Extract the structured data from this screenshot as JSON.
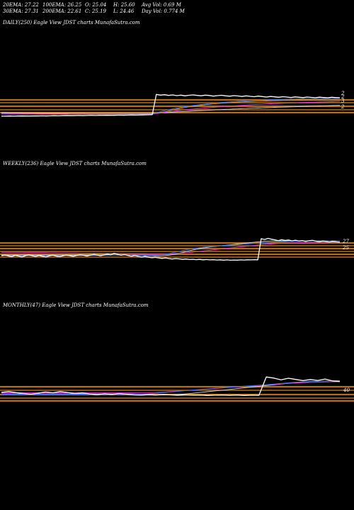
{
  "header": {
    "col1": [
      "20EMA: 27.22",
      "30EMA: 27.31"
    ],
    "col2": [
      "100EMA: 26.25",
      "200EMA: 22.61"
    ],
    "col3": [
      "O: 25.04",
      "C: 25.19"
    ],
    "col4": [
      "H: 25.60",
      "L: 24.46"
    ],
    "col5": [
      "Avg Vol: 0.69  M",
      "Day Vol: 0.774  M"
    ]
  },
  "colors": {
    "background": "#000000",
    "price": "#ffffff",
    "band": "#c87a1e",
    "ema_blue": "#3a6cf0",
    "ema_pink": "#e23acb",
    "ema_white": "#d8d8d8",
    "ema_orange": "#e79a3a"
  },
  "chart_data": [
    {
      "type": "line",
      "title": "DAILY(250) Eagle   View  JDST charts MunafaSutra.com",
      "right_labels": [
        "2",
        "2",
        "3",
        "2"
      ],
      "series": [
        {
          "values": [
            9.6,
            9.6,
            9.7,
            9.6,
            9.7,
            9.8,
            9.7,
            9.7,
            9.8,
            9.8,
            9.9,
            9.8,
            9.9,
            10.0,
            9.9,
            10.0,
            10.1,
            10.0,
            10.1,
            10.2,
            10.1,
            10.2,
            10.3,
            10.2,
            10.3,
            10.3,
            10.4,
            10.3,
            10.4,
            10.5,
            10.4,
            10.5,
            10.6,
            10.5,
            10.6,
            10.7,
            10.8,
            10.9,
            28.0,
            27.4,
            27.8,
            27.2,
            27.6,
            27.0,
            27.4,
            26.8,
            27.3,
            27.6,
            27.2,
            26.9,
            27.4,
            27.1,
            26.6,
            27.0,
            27.3,
            26.8,
            26.5,
            27.0,
            26.7,
            26.3,
            26.8,
            26.4,
            26.1,
            26.6,
            26.2,
            25.8,
            26.3,
            26.0,
            25.6,
            26.1,
            25.8,
            25.4,
            25.9,
            25.6,
            25.3,
            25.8,
            25.5,
            25.2,
            25.7,
            25.4,
            25.1,
            25.6,
            25.3,
            25.2
          ]
        },
        {
          "values": [
            11.4,
            11.4,
            11.3,
            11.3,
            11.3,
            11.2,
            11.2,
            11.2,
            11.2,
            11.1,
            11.1,
            11.1,
            11.1,
            11.1,
            11.1,
            11.1,
            11.1,
            11.1,
            11.1,
            11.1,
            11.1,
            11.1,
            11.1,
            11.1,
            11.1,
            11.1,
            11.1,
            11.1,
            11.1,
            11.1,
            11.1,
            11.1,
            11.1,
            11.1,
            11.2,
            11.2,
            11.2,
            11.3,
            12.5,
            13.4,
            14.3,
            15.1,
            15.8,
            16.5,
            17.1,
            17.7,
            18.2,
            18.7,
            19.1,
            19.5,
            19.9,
            20.3,
            20.6,
            20.9,
            21.2,
            21.5,
            21.7,
            22.0,
            22.2,
            22.4,
            22.6,
            22.8,
            23.0,
            23.1,
            23.3,
            23.4,
            23.6,
            23.7,
            23.8,
            23.9,
            24.0,
            24.1,
            24.2,
            24.3,
            24.4,
            24.4,
            24.5,
            24.5,
            24.6,
            24.6,
            24.7,
            24.7,
            24.7,
            24.8
          ]
        },
        {
          "values": [
            11.8,
            11.8,
            11.7,
            11.7,
            11.7,
            11.6,
            11.6,
            11.6,
            11.5,
            11.5,
            11.5,
            11.5,
            11.4,
            11.4,
            11.4,
            11.4,
            11.4,
            11.3,
            11.3,
            11.3,
            11.3,
            11.3,
            11.3,
            11.3,
            11.3,
            11.3,
            11.3,
            11.3,
            11.3,
            11.3,
            11.3,
            11.3,
            11.3,
            11.3,
            11.3,
            11.3,
            11.3,
            11.3,
            11.8,
            12.3,
            12.8,
            13.3,
            13.7,
            14.1,
            14.5,
            14.9,
            15.3,
            15.6,
            15.9,
            16.2,
            16.5,
            16.8,
            17.1,
            17.4,
            17.6,
            17.9,
            18.1,
            18.3,
            18.6,
            18.8,
            19.0,
            19.2,
            19.4,
            19.6,
            19.7,
            19.9,
            20.1,
            20.2,
            20.4,
            20.5,
            20.7,
            20.8,
            20.9,
            21.1,
            21.2,
            21.3,
            21.4,
            21.5,
            21.6,
            21.7,
            21.8,
            21.9,
            22.0,
            22.1
          ]
        },
        {
          "values": [
            12.6,
            12.6,
            12.5,
            12.5,
            12.5,
            12.5,
            12.4,
            12.4,
            12.4,
            12.4,
            12.3,
            12.3,
            12.3,
            12.3,
            12.3,
            12.2,
            12.2,
            12.2,
            12.2,
            12.2,
            12.2,
            12.1,
            12.1,
            12.1,
            12.1,
            12.1,
            12.1,
            12.1,
            12.1,
            12.1,
            12.0,
            12.0,
            12.0,
            12.0,
            12.0,
            12.0,
            12.0,
            12.0,
            12.2,
            12.4,
            12.6,
            12.8,
            13.0,
            13.2,
            13.4,
            13.6,
            13.8,
            14.0,
            14.2,
            14.4,
            14.5,
            14.7,
            14.9,
            15.1,
            15.2,
            15.4,
            15.5,
            15.7,
            15.8,
            16.0,
            16.1,
            16.3,
            16.4,
            16.5,
            16.7,
            16.8,
            16.9,
            17.1,
            17.2,
            17.3,
            17.4,
            17.5,
            17.6,
            17.8,
            17.9,
            18.0,
            18.1,
            18.2,
            18.3,
            18.4,
            18.5,
            18.6,
            18.7,
            18.8
          ]
        },
        {
          "values": [
            12.0,
            12.0,
            12.0,
            12.0,
            12.0,
            12.0,
            12.0,
            12.0,
            12.0,
            12.0,
            12.0,
            12.0,
            12.0,
            12.0,
            12.0,
            12.0,
            12.0,
            12.0,
            12.0,
            12.0,
            12.0,
            12.0,
            12.0,
            12.0,
            12.0,
            12.0,
            12.0,
            12.0,
            12.0,
            12.0,
            12.0,
            12.0,
            12.0,
            12.0,
            12.0,
            12.0,
            12.0,
            12.0,
            12.2,
            12.6,
            13.2,
            14.0,
            14.8,
            15.6,
            16.3,
            17.0,
            17.5,
            18.0,
            18.5,
            18.9,
            19.3,
            19.7,
            20.0,
            20.3,
            20.6,
            20.9,
            21.1,
            21.3,
            21.5,
            21.7,
            21.9,
            22.0,
            22.2,
            22.3,
            22.4,
            22.5,
            22.6,
            22.7,
            22.8,
            22.9,
            22.9,
            23.0,
            23.0,
            23.1,
            23.1,
            23.2,
            23.2,
            23.2,
            23.3,
            23.3,
            23.3,
            23.3,
            23.4,
            23.4
          ]
        }
      ]
    },
    {
      "type": "line",
      "title": "WEEKLY(236) Eagle   View  JDST charts MunafaSutra.com",
      "right_labels": [
        "27",
        "25"
      ],
      "series": [
        {
          "values": [
            14.2,
            14.8,
            14.1,
            13.6,
            14.5,
            14.0,
            13.4,
            14.3,
            14.9,
            14.2,
            13.7,
            14.4,
            13.9,
            13.3,
            14.1,
            14.7,
            14.0,
            13.5,
            14.2,
            14.8,
            14.3,
            13.8,
            14.5,
            15.1,
            14.6,
            14.0,
            14.7,
            15.3,
            14.8,
            14.2,
            14.9,
            15.5,
            15.0,
            16.2,
            15.4,
            14.6,
            15.2,
            14.5,
            13.9,
            14.4,
            13.8,
            13.2,
            13.7,
            13.1,
            12.6,
            13.0,
            12.5,
            12.1,
            12.5,
            12.0,
            11.6,
            12.0,
            11.7,
            11.3,
            11.6,
            11.2,
            11.4,
            11.1,
            11.3,
            11.0,
            11.2,
            10.9,
            11.1,
            10.8,
            11.0,
            10.7,
            10.9,
            10.6,
            10.8,
            10.7,
            10.9,
            10.8,
            11.0,
            10.9,
            11.1,
            11.0,
            28.0,
            27.4,
            28.3,
            27.6,
            27.1,
            26.4,
            27.2,
            26.6,
            27.0,
            26.2,
            26.8,
            26.1,
            26.5,
            25.8,
            26.4,
            26.7,
            26.0,
            25.6,
            26.1,
            25.8,
            25.4,
            25.9,
            25.5,
            25.2
          ]
        },
        {
          "values": [
            14.2,
            14.2,
            14.2,
            14.2,
            14.2,
            14.2,
            14.2,
            14.2,
            14.2,
            14.2,
            14.2,
            14.2,
            14.2,
            14.2,
            14.2,
            14.2,
            14.2,
            14.2,
            14.2,
            14.3,
            14.3,
            14.3,
            14.3,
            14.3,
            14.4,
            14.4,
            14.4,
            14.5,
            14.5,
            14.6,
            14.6,
            14.7,
            14.8,
            14.9,
            15.0,
            15.0,
            14.9,
            14.9,
            14.8,
            14.8,
            14.7,
            14.6,
            14.6,
            14.5,
            14.5,
            14.6,
            14.8,
            15.1,
            15.5,
            16.0,
            16.6,
            17.2,
            17.8,
            18.4,
            19.0,
            19.5,
            20.0,
            20.4,
            20.8,
            21.1,
            21.4,
            21.6,
            21.8,
            22.0,
            22.2,
            22.4,
            22.6,
            22.8,
            23.0,
            23.2,
            23.4,
            23.6,
            23.8,
            24.0,
            24.2,
            24.4,
            24.6,
            24.9,
            25.1,
            25.3,
            25.5,
            25.6,
            25.7,
            25.8,
            25.9,
            26.0,
            26.0,
            26.1,
            26.1,
            26.1,
            26.2,
            26.2,
            26.2,
            26.2,
            26.2,
            26.2,
            26.2,
            26.2,
            26.2,
            26.2
          ]
        },
        {
          "values": [
            17.0,
            17.0,
            17.0,
            17.0,
            17.0,
            17.0,
            17.0,
            16.9,
            16.9,
            16.9,
            16.9,
            16.8,
            16.8,
            16.8,
            16.7,
            16.7,
            16.7,
            16.6,
            16.6,
            16.6,
            16.5,
            16.5,
            16.5,
            16.4,
            16.4,
            16.4,
            16.3,
            16.3,
            16.3,
            16.2,
            16.2,
            16.2,
            16.2,
            16.1,
            16.1,
            16.1,
            16.1,
            16.1,
            16.0,
            16.0,
            16.0,
            16.0,
            16.0,
            15.9,
            15.9,
            15.9,
            15.9,
            15.9,
            15.9,
            15.9,
            16.0,
            16.1,
            16.3,
            16.5,
            16.7,
            16.9,
            17.2,
            17.5,
            17.8,
            18.1,
            18.4,
            18.7,
            19.0,
            19.3,
            19.6,
            19.9,
            20.2,
            20.5,
            20.8,
            21.1,
            21.4,
            21.7,
            22.0,
            22.3,
            22.6,
            22.9,
            23.2,
            23.4,
            23.6,
            23.8,
            24.0,
            24.2,
            24.3,
            24.4,
            24.5,
            24.6,
            24.7,
            24.8,
            24.9,
            25.0,
            25.0,
            25.1,
            25.1,
            25.2,
            25.2,
            25.2,
            25.3,
            25.3,
            25.3,
            25.3
          ]
        },
        {
          "values": [
            14.8,
            14.8,
            14.8,
            14.8,
            14.8,
            14.8,
            14.8,
            14.8,
            14.8,
            14.8,
            14.8,
            14.8,
            14.8,
            14.8,
            14.8,
            14.8,
            14.8,
            14.8,
            14.8,
            14.8,
            14.8,
            14.8,
            14.8,
            14.8,
            14.8,
            14.8,
            14.8,
            14.8,
            14.8,
            14.8,
            14.8,
            14.8,
            14.8,
            14.8,
            14.8,
            14.8,
            14.8,
            14.8,
            14.8,
            14.7,
            14.6,
            14.5,
            14.4,
            14.3,
            14.2,
            14.1,
            14.1,
            14.2,
            14.4,
            14.7,
            15.1,
            15.6,
            16.2,
            16.9,
            17.6,
            18.3,
            18.9,
            19.5,
            20.0,
            20.5,
            20.9,
            21.3,
            21.6,
            21.9,
            22.2,
            22.5,
            22.8,
            23.1,
            23.4,
            23.7,
            24.0,
            24.3,
            24.6,
            24.9,
            25.2,
            25.5,
            25.8,
            26.0,
            26.1,
            26.2,
            26.2,
            26.2,
            26.2,
            26.2,
            26.2,
            26.2,
            26.2,
            26.2,
            26.2,
            26.2,
            26.2,
            26.2,
            26.2,
            26.2,
            26.2,
            26.2,
            26.2,
            26.2,
            26.2,
            26.2
          ]
        }
      ]
    },
    {
      "type": "line",
      "title": "MONTHLY(47) Eagle   View  JDST charts MunafaSutra.com",
      "right_labels": [
        "40"
      ],
      "series": [
        {
          "values": [
            28.0,
            28.6,
            27.8,
            27.2,
            26.6,
            27.4,
            28.3,
            27.7,
            28.6,
            27.9,
            27.1,
            27.6,
            26.8,
            26.2,
            26.9,
            26.4,
            27.1,
            26.6,
            26.0,
            25.8,
            26.2,
            25.9,
            26.3,
            26.0,
            25.7,
            26.0,
            25.8,
            25.9,
            25.6,
            25.8,
            25.9,
            25.7,
            25.9,
            25.6,
            25.8,
            25.7,
            40.0,
            39.2,
            37.8,
            39.0,
            38.1,
            37.2,
            38.0,
            37.3,
            38.4,
            36.9,
            36.5
          ]
        },
        {
          "values": [
            26.6,
            26.6,
            26.6,
            26.6,
            26.6,
            26.6,
            26.6,
            26.6,
            26.6,
            26.6,
            26.6,
            26.6,
            26.6,
            26.6,
            26.6,
            26.6,
            26.6,
            26.6,
            26.6,
            26.7,
            26.9,
            27.3,
            27.8,
            28.3,
            28.8,
            29.3,
            29.8,
            30.3,
            30.8,
            31.2,
            31.6,
            32.0,
            32.4,
            32.8,
            33.2,
            33.6,
            34.0,
            34.5,
            35.0,
            35.5,
            35.9,
            36.2,
            36.5,
            36.7,
            36.9,
            37.0,
            37.0
          ]
        },
        {
          "values": [
            27.6,
            27.6,
            27.6,
            27.6,
            27.6,
            27.6,
            27.6,
            27.6,
            27.6,
            27.6,
            27.6,
            27.6,
            27.6,
            27.6,
            27.6,
            27.6,
            27.6,
            27.6,
            27.6,
            27.6,
            27.7,
            27.9,
            28.2,
            28.6,
            29.0,
            29.4,
            29.8,
            30.2,
            30.6,
            31.0,
            31.4,
            31.8,
            32.2,
            32.6,
            33.0,
            33.4,
            33.8,
            34.2,
            34.6,
            35.0,
            35.3,
            35.6,
            35.8,
            36.0,
            36.1,
            36.2,
            36.3
          ]
        },
        {
          "values": [
            26.8,
            26.8,
            26.8,
            26.8,
            26.8,
            26.8,
            26.8,
            26.8,
            26.8,
            26.8,
            26.8,
            26.8,
            26.8,
            26.8,
            26.8,
            26.8,
            26.8,
            26.8,
            26.8,
            26.6,
            26.4,
            26.2,
            26.1,
            26.2,
            26.4,
            26.8,
            27.3,
            27.9,
            28.5,
            29.1,
            29.7,
            30.3,
            30.9,
            31.5,
            32.1,
            32.7,
            33.3,
            33.9,
            34.5,
            35.1,
            35.6,
            36.0,
            36.4,
            36.7,
            36.9,
            37.0,
            37.1
          ]
        }
      ]
    }
  ]
}
